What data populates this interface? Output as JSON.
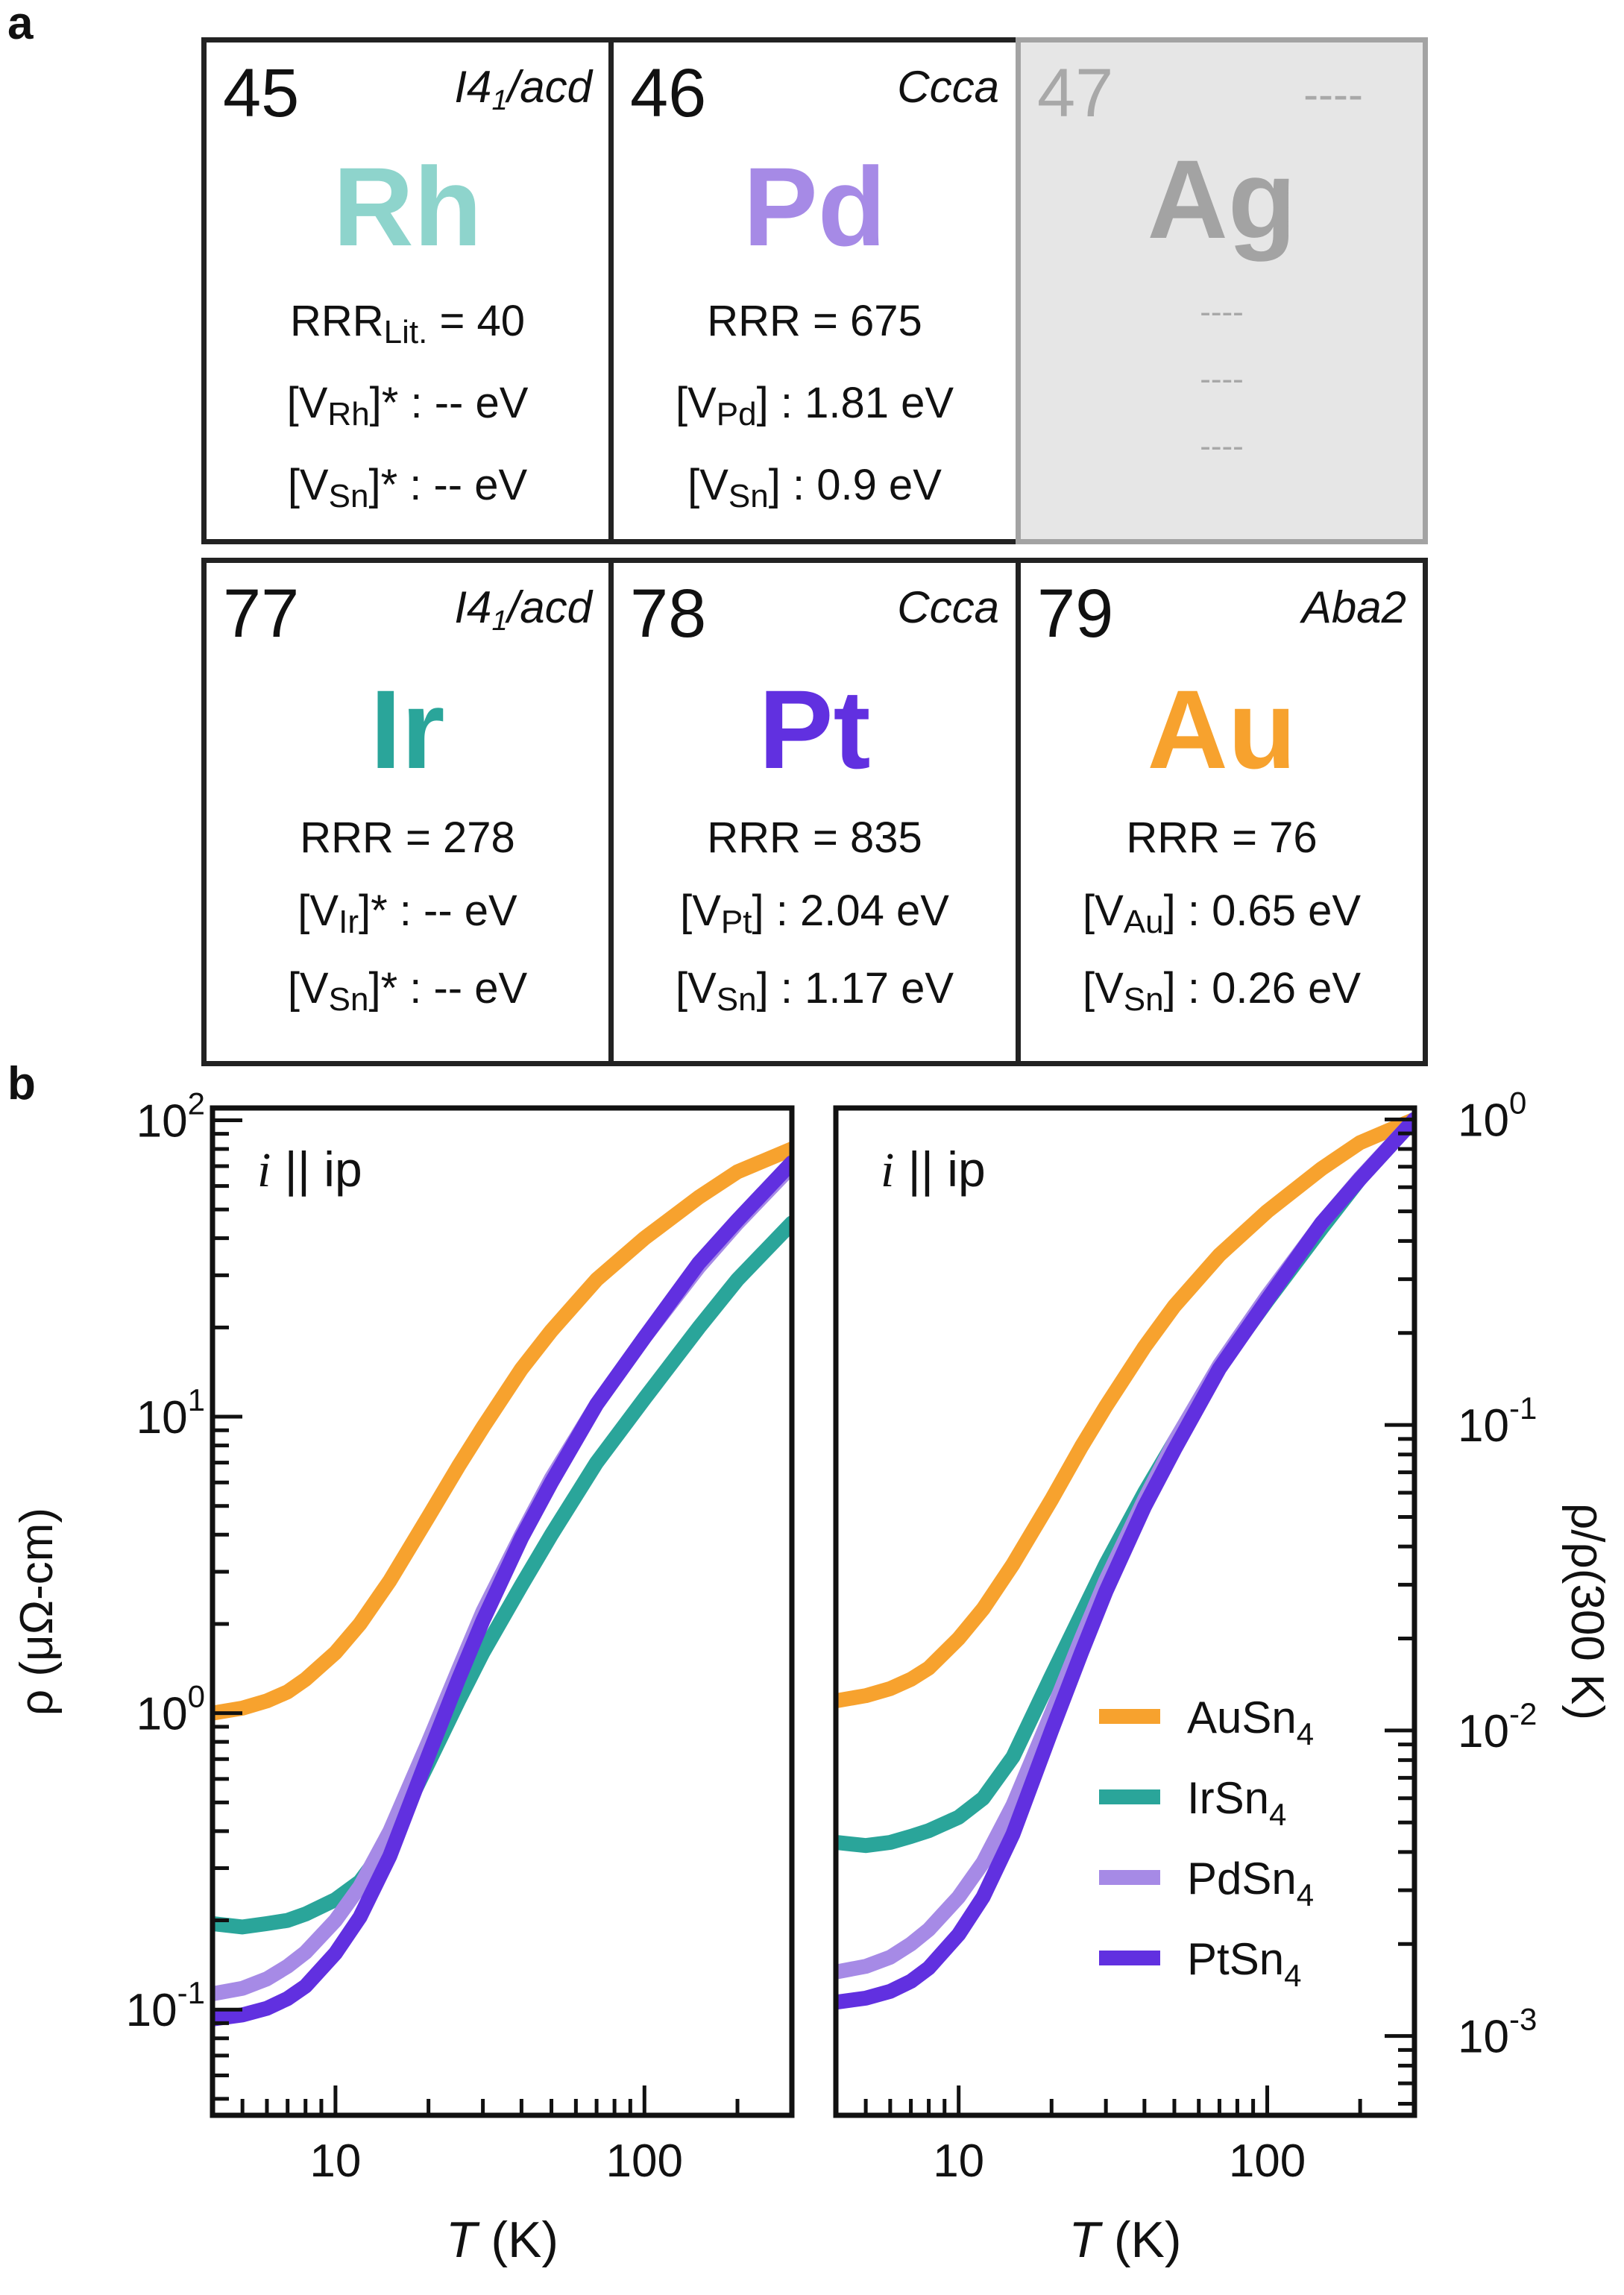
{
  "panel_labels": {
    "a": "a",
    "b": "b"
  },
  "colors": {
    "Rh": "#8ed4cc",
    "Pd": "#a68ae6",
    "Ag": "#a3a3a3",
    "Ir": "#2aa59a",
    "Pt": "#6130e0",
    "Au": "#f7a22e",
    "AuSn4": "#f7a22e",
    "IrSn4": "#2aa59a",
    "PdSn4": "#a68ae6",
    "PtSn4": "#6130e0"
  },
  "elements": [
    {
      "id": "rh",
      "num": "45",
      "sg": "I4",
      "sg_sub": "1",
      "sg_rest": "/acd",
      "sym": "Rh",
      "rrr_prefix": "RRR",
      "rrr_sub": "Lit.",
      "rrr_value": " = 40",
      "v1_a": "[V",
      "v1_sub": "Rh",
      "v1_b": "]* : -- eV",
      "v2_a": "[V",
      "v2_sub": "Sn",
      "v2_b": "]* : -- eV"
    },
    {
      "id": "pd",
      "num": "46",
      "sg": "Ccca",
      "sg_sub": "",
      "sg_rest": "",
      "sym": "Pd",
      "rrr_prefix": "RRR",
      "rrr_sub": "",
      "rrr_value": " = 675",
      "v1_a": "[V",
      "v1_sub": "Pd",
      "v1_b": "] : 1.81 eV",
      "v2_a": "[V",
      "v2_sub": "Sn",
      "v2_b": "] : 0.9 eV"
    },
    {
      "id": "ag",
      "num": "47",
      "sg": "----",
      "sg_sub": "",
      "sg_rest": "",
      "sym": "Ag",
      "rrr_line": "----",
      "v1_line": "----",
      "v2_line": "----"
    },
    {
      "id": "ir",
      "num": "77",
      "sg": "I4",
      "sg_sub": "1",
      "sg_rest": "/acd",
      "sym": "Ir",
      "rrr_prefix": "RRR",
      "rrr_sub": "",
      "rrr_value": " = 278",
      "v1_a": "[V",
      "v1_sub": "Ir",
      "v1_b": "]* : -- eV",
      "v2_a": "[V",
      "v2_sub": "Sn",
      "v2_b": "]* : -- eV"
    },
    {
      "id": "pt",
      "num": "78",
      "sg": "Ccca",
      "sg_sub": "",
      "sg_rest": "",
      "sym": "Pt",
      "rrr_prefix": "RRR",
      "rrr_sub": "",
      "rrr_value": " = 835",
      "v1_a": "[V",
      "v1_sub": "Pt",
      "v1_b": "] : 2.04 eV",
      "v2_a": "[V",
      "v2_sub": "Sn",
      "v2_b": "] : 1.17 eV"
    },
    {
      "id": "au",
      "num": "79",
      "sg": "Aba2",
      "sg_sub": "",
      "sg_rest": "",
      "sym": "Au",
      "rrr_prefix": "RRR",
      "rrr_sub": "",
      "rrr_value": " = 76",
      "v1_a": "[V",
      "v1_sub": "Au",
      "v1_b": "] : 0.65 eV",
      "v2_a": "[V",
      "v2_sub": "Sn",
      "v2_b": "] : 0.26 eV"
    }
  ],
  "chart_data": [
    {
      "type": "line",
      "annotation_italic": "i",
      "annotation_rest": " || ip",
      "xlabel_italic": "T",
      "xlabel_rest": " (K)",
      "ylabel": "ρ (μΩ-cm)",
      "xscale": "log",
      "yscale": "log",
      "xlim": [
        4,
        300
      ],
      "ylim": [
        0.044,
        110
      ],
      "xticklabels": [
        {
          "v": 10,
          "t": "10"
        },
        {
          "v": 100,
          "t": "100"
        }
      ],
      "yticklabels": [
        {
          "v": 100,
          "b": "10",
          "e": "2"
        },
        {
          "v": 10,
          "b": "10",
          "e": "1"
        },
        {
          "v": 1,
          "b": "10",
          "e": "0"
        },
        {
          "v": 0.1,
          "b": "10",
          "e": "-1"
        }
      ],
      "series": [
        {
          "key": "AuSn4",
          "x": [
            4,
            5,
            6,
            7,
            8,
            10,
            12,
            15,
            20,
            25,
            30,
            40,
            50,
            70,
            100,
            150,
            200,
            300
          ],
          "y": [
            1.0,
            1.04,
            1.1,
            1.18,
            1.3,
            1.6,
            2.0,
            2.8,
            4.6,
            6.8,
            9.2,
            14.5,
            19.5,
            29,
            40,
            55,
            67,
            80
          ]
        },
        {
          "key": "IrSn4",
          "x": [
            4,
            5,
            6,
            7,
            8,
            10,
            12,
            15,
            20,
            25,
            30,
            40,
            50,
            70,
            100,
            150,
            200,
            300
          ],
          "y": [
            0.195,
            0.19,
            0.195,
            0.2,
            0.21,
            0.235,
            0.27,
            0.37,
            0.68,
            1.1,
            1.6,
            2.7,
            4.0,
            7.0,
            11.5,
            20,
            29,
            45
          ]
        },
        {
          "key": "PdSn4",
          "x": [
            4,
            5,
            6,
            7,
            8,
            10,
            12,
            15,
            20,
            25,
            30,
            40,
            50,
            70,
            100,
            150,
            200,
            300
          ],
          "y": [
            0.113,
            0.118,
            0.127,
            0.14,
            0.156,
            0.2,
            0.26,
            0.4,
            0.8,
            1.4,
            2.2,
            4.0,
            6.2,
            11,
            18.5,
            32,
            45,
            70
          ]
        },
        {
          "key": "PtSn4",
          "x": [
            4,
            5,
            6,
            7,
            8,
            10,
            12,
            15,
            20,
            25,
            30,
            40,
            50,
            70,
            100,
            150,
            200,
            300
          ],
          "y": [
            0.093,
            0.096,
            0.101,
            0.109,
            0.12,
            0.155,
            0.205,
            0.33,
            0.72,
            1.3,
            2.05,
            3.9,
            6.0,
            11,
            18.5,
            33,
            46,
            72
          ]
        }
      ]
    },
    {
      "type": "line",
      "annotation_italic": "i",
      "annotation_rest": " || ip",
      "xlabel_italic": "T",
      "xlabel_rest": " (K)",
      "ylabel": "ρ/ρ(300 K)",
      "xscale": "log",
      "yscale": "log",
      "xlim": [
        4,
        300
      ],
      "ylim": [
        0.00055,
        1.09
      ],
      "xticklabels": [
        {
          "v": 10,
          "t": "10"
        },
        {
          "v": 100,
          "t": "100"
        }
      ],
      "yticklabels": [
        {
          "v": 1,
          "b": "10",
          "e": "0"
        },
        {
          "v": 0.1,
          "b": "10",
          "e": "-1"
        },
        {
          "v": 0.01,
          "b": "10",
          "e": "-2"
        },
        {
          "v": 0.001,
          "b": "10",
          "e": "-3"
        }
      ],
      "legend": {
        "placement": "lower-right",
        "entries": [
          {
            "key": "AuSn4",
            "label": "AuSn",
            "sub": "4"
          },
          {
            "key": "IrSn4",
            "label": "IrSn",
            "sub": "4"
          },
          {
            "key": "PdSn4",
            "label": "PdSn",
            "sub": "4"
          },
          {
            "key": "PtSn4",
            "label": "PtSn",
            "sub": "4"
          }
        ]
      },
      "series": [
        {
          "key": "AuSn4",
          "x": [
            4,
            5,
            6,
            7,
            8,
            10,
            12,
            15,
            20,
            25,
            30,
            40,
            50,
            70,
            100,
            150,
            200,
            300
          ],
          "y": [
            0.0125,
            0.013,
            0.0137,
            0.0147,
            0.016,
            0.02,
            0.025,
            0.035,
            0.057,
            0.085,
            0.115,
            0.18,
            0.245,
            0.36,
            0.5,
            0.69,
            0.84,
            1.0
          ]
        },
        {
          "key": "IrSn4",
          "x": [
            4,
            5,
            6,
            7,
            8,
            10,
            12,
            15,
            20,
            25,
            30,
            40,
            50,
            70,
            100,
            150,
            200,
            300
          ],
          "y": [
            0.0043,
            0.0042,
            0.0043,
            0.0045,
            0.0047,
            0.0052,
            0.006,
            0.0082,
            0.0151,
            0.024,
            0.035,
            0.06,
            0.088,
            0.155,
            0.255,
            0.44,
            0.64,
            1.0
          ]
        },
        {
          "key": "PdSn4",
          "x": [
            4,
            5,
            6,
            7,
            8,
            10,
            12,
            15,
            20,
            25,
            30,
            40,
            50,
            70,
            100,
            150,
            200,
            300
          ],
          "y": [
            0.00162,
            0.00169,
            0.00181,
            0.002,
            0.00223,
            0.00285,
            0.0037,
            0.0057,
            0.0114,
            0.02,
            0.031,
            0.057,
            0.088,
            0.157,
            0.264,
            0.457,
            0.643,
            1.0
          ]
        },
        {
          "key": "PtSn4",
          "x": [
            4,
            5,
            6,
            7,
            8,
            10,
            12,
            15,
            20,
            25,
            30,
            40,
            50,
            70,
            100,
            150,
            200,
            300
          ],
          "y": [
            0.00129,
            0.00133,
            0.0014,
            0.00151,
            0.00167,
            0.00215,
            0.00285,
            0.00458,
            0.01,
            0.018,
            0.0285,
            0.054,
            0.083,
            0.153,
            0.257,
            0.458,
            0.639,
            1.0
          ]
        }
      ]
    }
  ]
}
